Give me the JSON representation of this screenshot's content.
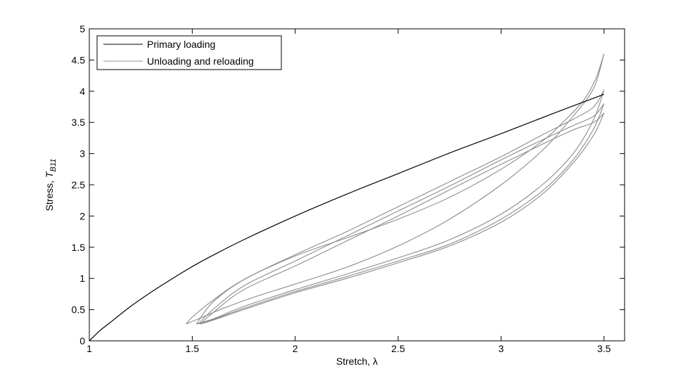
{
  "chart_data": {
    "type": "line",
    "xlabel": "Stretch, λ",
    "ylabel_main": "Stress, ",
    "ylabel_symbol": "T",
    "ylabel_subscript": "B11",
    "xlim": [
      1,
      3.6
    ],
    "ylim": [
      0,
      5
    ],
    "xticks": [
      1,
      1.5,
      2,
      2.5,
      3,
      3.5
    ],
    "xtick_labels": [
      "1",
      "1.5",
      "2",
      "2.5",
      "3",
      "3.5"
    ],
    "yticks": [
      0,
      0.5,
      1,
      1.5,
      2,
      2.5,
      3,
      3.5,
      4,
      4.5,
      5
    ],
    "ytick_labels": [
      "0",
      "0.5",
      "1",
      "1.5",
      "2",
      "2.5",
      "3",
      "3.5",
      "4",
      "4.5",
      "5"
    ],
    "grid": false,
    "legend_position": "top-left",
    "legend": [
      {
        "label": "Primary loading",
        "color": "#000000"
      },
      {
        "label": "Unloading and reloading",
        "color": "#8c8c8c"
      }
    ],
    "series": [
      {
        "name": "Primary loading",
        "color": "#000000",
        "x": [
          1.0,
          1.05,
          1.1,
          1.2,
          1.3,
          1.4,
          1.5,
          1.6,
          1.75,
          2.0,
          2.25,
          2.5,
          2.75,
          3.0,
          3.25,
          3.5
        ],
        "y": [
          0.0,
          0.16,
          0.29,
          0.55,
          0.78,
          0.99,
          1.19,
          1.37,
          1.62,
          2.0,
          2.35,
          2.68,
          3.01,
          3.32,
          3.64,
          3.95
        ]
      },
      {
        "name": "Unloading and reloading",
        "color": "#8c8c8c",
        "loops": [
          {
            "unload_x": [
              3.5,
              3.46,
              3.4,
              3.3,
              3.2,
              3.0,
              2.75,
              2.5,
              2.25,
              2.0,
              1.75,
              1.6,
              1.5,
              1.47
            ],
            "unload_y": [
              4.6,
              4.2,
              3.85,
              3.5,
              3.2,
              2.75,
              2.3,
              1.95,
              1.65,
              1.36,
              0.98,
              0.65,
              0.38,
              0.27
            ],
            "reload_x": [
              1.47,
              1.55,
              1.65,
              1.8,
              2.0,
              2.25,
              2.5,
              2.75,
              3.0,
              3.2,
              3.35,
              3.45,
              3.5
            ],
            "reload_y": [
              0.27,
              0.38,
              0.52,
              0.7,
              0.91,
              1.18,
              1.52,
              1.95,
              2.5,
              3.05,
              3.6,
              4.05,
              4.6
            ]
          },
          {
            "unload_x": [
              3.5,
              3.45,
              3.35,
              3.2,
              3.0,
              2.75,
              2.5,
              2.25,
              2.0,
              1.75,
              1.6,
              1.52
            ],
            "unload_y": [
              4.02,
              3.75,
              3.55,
              3.3,
              2.95,
              2.55,
              2.15,
              1.75,
              1.38,
              0.98,
              0.62,
              0.27
            ],
            "reload_x": [
              1.52,
              1.6,
              1.75,
              2.0,
              2.25,
              2.5,
              2.75,
              3.0,
              3.2,
              3.35,
              3.45,
              3.5
            ],
            "reload_y": [
              0.27,
              0.35,
              0.55,
              0.82,
              1.07,
              1.33,
              1.62,
              2.03,
              2.5,
              3.0,
              3.55,
              4.02
            ]
          },
          {
            "unload_x": [
              3.5,
              3.45,
              3.35,
              3.2,
              3.0,
              2.75,
              2.5,
              2.25,
              2.0,
              1.75,
              1.6,
              1.53
            ],
            "unload_y": [
              3.8,
              3.6,
              3.45,
              3.22,
              2.9,
              2.48,
              2.08,
              1.68,
              1.28,
              0.88,
              0.5,
              0.27
            ],
            "reload_x": [
              1.53,
              1.6,
              1.75,
              2.0,
              2.25,
              2.5,
              2.75,
              3.0,
              3.2,
              3.35,
              3.45,
              3.5
            ],
            "reload_y": [
              0.27,
              0.34,
              0.52,
              0.79,
              1.03,
              1.28,
              1.55,
              1.95,
              2.4,
              2.9,
              3.4,
              3.8
            ]
          },
          {
            "unload_x": [
              3.5,
              3.45,
              3.35,
              3.2,
              3.0,
              2.75,
              2.5,
              2.25,
              2.0,
              1.75,
              1.6,
              1.54
            ],
            "unload_y": [
              3.65,
              3.5,
              3.38,
              3.15,
              2.83,
              2.42,
              2.0,
              1.6,
              1.2,
              0.82,
              0.45,
              0.27
            ],
            "reload_x": [
              1.54,
              1.6,
              1.75,
              2.0,
              2.25,
              2.5,
              2.75,
              3.0,
              3.2,
              3.35,
              3.45,
              3.5
            ],
            "reload_y": [
              0.27,
              0.33,
              0.5,
              0.77,
              1.0,
              1.25,
              1.52,
              1.9,
              2.35,
              2.85,
              3.3,
              3.65
            ]
          }
        ]
      }
    ]
  }
}
